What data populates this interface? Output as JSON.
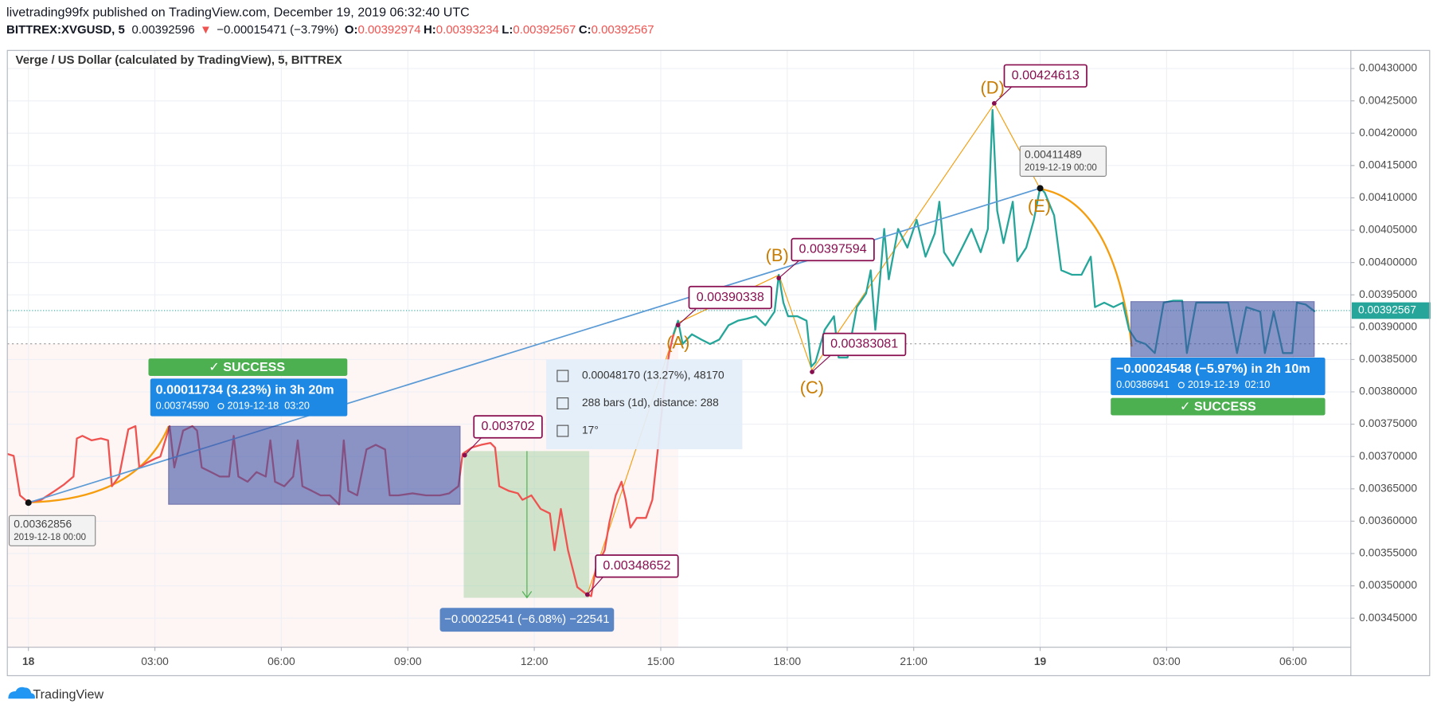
{
  "header": {
    "publisher": "livetrading99fx published on TradingView.com, December 19, 2019 06:32:40 UTC",
    "symbol": "BITTREX:XVGUSD, 5",
    "last": 0.00392596,
    "arrow": "▼",
    "change": "−0.00015471 (−3.79%)",
    "ohlc": [
      {
        "key": "O:",
        "value": 0.00392974
      },
      {
        "key": "H:",
        "value": 0.00393234
      },
      {
        "key": "L:",
        "value": 0.00392567
      },
      {
        "key": "C:",
        "value": 0.00392567
      }
    ]
  },
  "chart_data": {
    "type": "line",
    "title": "Verge / US Dollar (calculated by TradingView), 5, BITTREX",
    "xlim": [
      -0.5,
      31.37
    ],
    "xticks": [
      {
        "value": 0,
        "label": "18"
      },
      {
        "value": 3,
        "label": "03:00"
      },
      {
        "value": 6,
        "label": "06:00"
      },
      {
        "value": 9,
        "label": "09:00"
      },
      {
        "value": 12,
        "label": "12:00"
      },
      {
        "value": 15,
        "label": "15:00"
      },
      {
        "value": 18,
        "label": "18:00"
      },
      {
        "value": 21,
        "label": "21:00"
      },
      {
        "value": 24,
        "label": "19"
      },
      {
        "value": 27,
        "label": "03:00"
      },
      {
        "value": 30,
        "label": "06:00"
      }
    ],
    "ylim": [
      0.003405,
      0.004328
    ],
    "yticks": [
      {
        "value": 0.00345,
        "label": "0.00345000"
      },
      {
        "value": 0.0035,
        "label": "0.00350000"
      },
      {
        "value": 0.00355,
        "label": "0.00355000"
      },
      {
        "value": 0.0036,
        "label": "0.00360000"
      },
      {
        "value": 0.00365,
        "label": "0.00365000"
      },
      {
        "value": 0.0037,
        "label": "0.00370000"
      },
      {
        "value": 0.00375,
        "label": "0.00375000"
      },
      {
        "value": 0.0038,
        "label": "0.00380000"
      },
      {
        "value": 0.00385,
        "label": "0.00385000"
      },
      {
        "value": 0.0039,
        "label": "0.00390000"
      },
      {
        "value": 0.00395,
        "label": "0.00395000"
      },
      {
        "value": 0.004,
        "label": "0.00400000"
      },
      {
        "value": 0.00405,
        "label": "0.00405000"
      },
      {
        "value": 0.0041,
        "label": "0.00410000"
      },
      {
        "value": 0.00415,
        "label": "0.00415000"
      },
      {
        "value": 0.0042,
        "label": "0.00420000"
      },
      {
        "value": 0.00425,
        "label": "0.00425000"
      },
      {
        "value": 0.0043,
        "label": "0.00430000"
      }
    ],
    "grid": true,
    "last_price": 0.00392567,
    "last_price_color": "#26a69a",
    "series": [
      {
        "color": "#ef5350",
        "x": [
          -0.5,
          -0.35,
          -0.2,
          0,
          0.3,
          0.63,
          0.85,
          1.07,
          1.15,
          1.28,
          1.5,
          1.72,
          1.89,
          1.98,
          2.15,
          2.37,
          2.54,
          2.63,
          2.8,
          3.02,
          3.13,
          3.35,
          3.46,
          3.67,
          3.89,
          4,
          4.11,
          4.33,
          4.54,
          4.76,
          4.87,
          4.98,
          5.2,
          5.41,
          5.63,
          5.74,
          5.85,
          6.07,
          6.28,
          6.39,
          6.5,
          6.72,
          6.93,
          7.15,
          7.37,
          7.48,
          7.59,
          7.8,
          8.02,
          8.24,
          8.46,
          8.57,
          8.78,
          9.11,
          9.43,
          9.76,
          9.98,
          10.2,
          10.3,
          10.52,
          10.74,
          10.96,
          11.07,
          11.17,
          11.39,
          11.61,
          11.72,
          11.93,
          12.15,
          12.37,
          12.48,
          12.63,
          12.8,
          13.02,
          13.24,
          13.35,
          13.46,
          13.67,
          13.78,
          13.93,
          14.07,
          14.17,
          14.28,
          14.43,
          14.65,
          14.8,
          14.93,
          15.09,
          15.2,
          15.3
        ],
        "values": [
          0.003704,
          0.003701,
          0.00364,
          0.003629,
          0.003633,
          0.003647,
          0.003657,
          0.003669,
          0.003728,
          0.003732,
          0.003725,
          0.003728,
          0.003725,
          0.003654,
          0.003669,
          0.003742,
          0.003747,
          0.003683,
          0.00369,
          0.003697,
          0.0037,
          0.003747,
          0.003683,
          0.00374,
          0.003747,
          0.00374,
          0.003683,
          0.003676,
          0.003669,
          0.003669,
          0.003732,
          0.003669,
          0.003661,
          0.003676,
          0.003669,
          0.003725,
          0.003661,
          0.003654,
          0.003669,
          0.003725,
          0.003654,
          0.003647,
          0.00364,
          0.00364,
          0.003626,
          0.003725,
          0.003647,
          0.00364,
          0.003711,
          0.003718,
          0.003711,
          0.00364,
          0.00364,
          0.003643,
          0.00364,
          0.00364,
          0.003643,
          0.003654,
          0.003704,
          0.003714,
          0.003718,
          0.003721,
          0.003714,
          0.003654,
          0.003647,
          0.003643,
          0.003633,
          0.00364,
          0.003619,
          0.003612,
          0.003555,
          0.003619,
          0.003555,
          0.003498,
          0.003487,
          0.003484,
          0.003527,
          0.003555,
          0.003598,
          0.00364,
          0.003661,
          0.003633,
          0.00359,
          0.003605,
          0.003605,
          0.003633,
          0.003711,
          0.00381,
          0.00386,
          0.003889
        ]
      },
      {
        "color": "#26a69a",
        "x": [
          15.3,
          15.41,
          15.52,
          15.74,
          15.96,
          16.17,
          16.39,
          16.61,
          16.83,
          17.04,
          17.26,
          17.48,
          17.7,
          17.8,
          17.91,
          18.02,
          18.24,
          18.46,
          18.57,
          18.67,
          18.89,
          19.11,
          19.22,
          19.43,
          19.65,
          19.87,
          19.98,
          20.09,
          20.2,
          20.3,
          20.41,
          20.63,
          20.85,
          21.07,
          21.28,
          21.5,
          21.61,
          21.72,
          21.93,
          22.15,
          22.37,
          22.59,
          22.76,
          22.87,
          22.98,
          23.13,
          23.35,
          23.46,
          23.67,
          23.85,
          24,
          24.11,
          24.33,
          24.5,
          24.76,
          24.98,
          25.2,
          25.3,
          25.52,
          25.74,
          25.96,
          26.11,
          26.28,
          26.5,
          26.72,
          26.93,
          27.15,
          27.37,
          27.48,
          27.7,
          28.02,
          28.46,
          28.67,
          28.89,
          29.22,
          29.33,
          29.54,
          29.76,
          29.98,
          30.09,
          30.3,
          30.52
        ],
        "values": [
          0.003889,
          0.00391,
          0.003874,
          0.003889,
          0.003881,
          0.003874,
          0.003881,
          0.003903,
          0.00391,
          0.003913,
          0.003917,
          0.003903,
          0.003924,
          0.003981,
          0.003938,
          0.003917,
          0.003917,
          0.00391,
          0.003839,
          0.003846,
          0.003896,
          0.003917,
          0.003853,
          0.003853,
          0.003931,
          0.003952,
          0.003988,
          0.003896,
          0.003974,
          0.004052,
          0.003974,
          0.004052,
          0.004023,
          0.004066,
          0.004009,
          0.004045,
          0.004094,
          0.004016,
          0.003995,
          0.004023,
          0.004052,
          0.004016,
          0.004052,
          0.004236,
          0.00408,
          0.00403,
          0.004094,
          0.004002,
          0.004023,
          0.004066,
          0.004116,
          0.004108,
          0.004073,
          0.003988,
          0.003981,
          0.003981,
          0.004009,
          0.003931,
          0.003938,
          0.003931,
          0.003938,
          0.003896,
          0.003879,
          0.003874,
          0.00386,
          0.003938,
          0.003941,
          0.003941,
          0.00386,
          0.003938,
          0.003938,
          0.003938,
          0.00386,
          0.003931,
          0.003924,
          0.00386,
          0.003924,
          0.00386,
          0.00386,
          0.003938,
          0.003935,
          0.003924
        ]
      }
    ],
    "price_labels": [
      {
        "x": 15.41,
        "value": 0.00390338
      },
      {
        "x": 17.8,
        "value": 0.00397594
      },
      {
        "x": 18.59,
        "value": 0.00383081
      },
      {
        "x": 22.91,
        "value": 0.00424613
      },
      {
        "x": 13.26,
        "value": 0.00348652
      },
      {
        "x": 10.35,
        "value": 0.003702
      }
    ],
    "pivot_labels": [
      {
        "x": 0,
        "value": 0.00362856,
        "date": "2019-12-18 00:00"
      },
      {
        "x": 24,
        "value": 0.00411489,
        "date": "2019-12-19 00:00"
      }
    ],
    "waves": [
      "(A)",
      "(B)",
      "(C)",
      "(D)",
      "(E)"
    ],
    "measures": [
      {
        "status": "✓ SUCCESS",
        "change": "0.00011734 (3.23%) in 3h 20m",
        "price": "0.00374590",
        "date": "2019-12-18  03:20"
      },
      {
        "status": "✓ SUCCESS",
        "change": "−0.00024548 (−5.97%) in 2h 10m",
        "price": "0.00386941",
        "date": "2019-12-19  02:10"
      }
    ],
    "range_label": "−0.00022541 (−6.08%) −22541",
    "stats": [
      "0.00048170 (13.27%), 48170",
      "288 bars (1d), distance: 288",
      "17°"
    ]
  },
  "footer": {
    "brand": "TradingView"
  }
}
